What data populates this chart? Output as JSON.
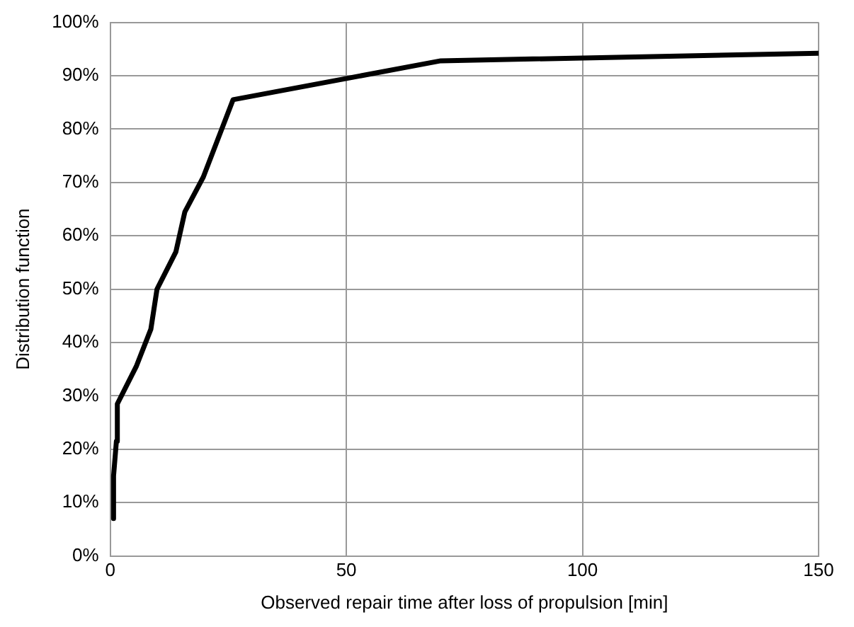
{
  "chart_data": {
    "type": "line",
    "xlabel": "Observed repair time after loss of propulsion [min]",
    "ylabel": "Distribution function",
    "x": [
      0.7,
      0.7,
      1.3,
      1.5,
      5.5,
      8.6,
      9.9,
      13.9,
      15.8,
      19.7,
      26,
      70,
      150
    ],
    "series": [
      {
        "color": "#000000",
        "values": [
          7,
          15,
          21.5,
          28.5,
          35.5,
          42.5,
          50,
          57,
          64.5,
          71,
          85.5,
          92.8,
          94.2
        ]
      }
    ],
    "xlim": [
      0,
      150
    ],
    "xticks": [
      0,
      50,
      100,
      150
    ],
    "ylim": [
      0,
      100
    ],
    "yticks": [
      {
        "value": 0,
        "label": "0%"
      },
      {
        "value": 10,
        "label": "10%"
      },
      {
        "value": 20,
        "label": "20%"
      },
      {
        "value": 30,
        "label": "30%"
      },
      {
        "value": 40,
        "label": "40%"
      },
      {
        "value": 50,
        "label": "50%"
      },
      {
        "value": 60,
        "label": "60%"
      },
      {
        "value": 70,
        "label": "70%"
      },
      {
        "value": 80,
        "label": "80%"
      },
      {
        "value": 90,
        "label": "90%"
      },
      {
        "value": 100,
        "label": "100%"
      }
    ],
    "grid": true,
    "legend": false,
    "marker": "none",
    "line_style": "solid"
  }
}
